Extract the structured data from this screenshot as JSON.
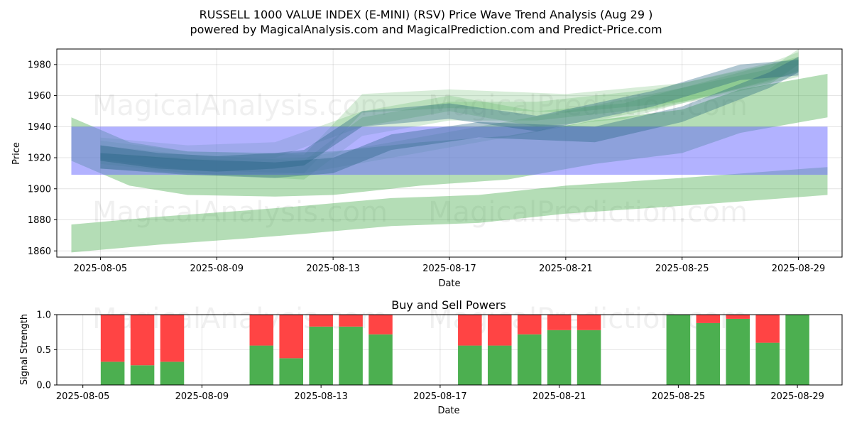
{
  "title_line1": "RUSSELL 1000 VALUE INDEX (E-MINI) (RSV) Price Wave Trend Analysis (Aug 29 )",
  "title_line2": "powered by MagicalAnalysis.com and MagicalPrediction.com and Predict-Price.com",
  "watermarks": [
    "MagicalAnalysis.com",
    "MagicalPrediction.com"
  ],
  "chart_data": [
    {
      "type": "area",
      "xlabel": "Date",
      "ylabel": "Price",
      "ylim": [
        1856,
        1990
      ],
      "xlim": [
        "2025-08-03T12:00",
        "2025-08-30T12:00"
      ],
      "yticks": [
        1860,
        1880,
        1900,
        1920,
        1940,
        1960,
        1980
      ],
      "xticks": [
        "2025-08-05",
        "2025-08-09",
        "2025-08-13",
        "2025-08-17",
        "2025-08-21",
        "2025-08-25",
        "2025-08-29"
      ],
      "grid": true,
      "colors": {
        "green_band": "#4caf50",
        "blue_band": "#6666ff",
        "teal_band": "#1f5f7f"
      },
      "blue_band": {
        "x": [
          "2025-08-04",
          "2025-08-30"
        ],
        "low": 1909,
        "high": 1940
      },
      "green_bands": [
        {
          "x": [
            "2025-08-04",
            "2025-08-07",
            "2025-08-10",
            "2025-08-12",
            "2025-08-15",
            "2025-08-18",
            "2025-08-21",
            "2025-08-25",
            "2025-08-30"
          ],
          "center": [
            1868,
            1873,
            1877,
            1880,
            1885,
            1887,
            1893,
            1898,
            1905
          ],
          "half_width": 9
        },
        {
          "x": [
            "2025-08-04",
            "2025-08-06",
            "2025-08-08",
            "2025-08-11",
            "2025-08-13",
            "2025-08-16",
            "2025-08-19",
            "2025-08-22",
            "2025-08-25",
            "2025-08-27",
            "2025-08-30"
          ],
          "center": [
            1932,
            1916,
            1910,
            1909,
            1910,
            1916,
            1920,
            1930,
            1937,
            1950,
            1960
          ],
          "half_width": 14
        },
        {
          "x": [
            "2025-08-05",
            "2025-08-08",
            "2025-08-12",
            "2025-08-14",
            "2025-08-17",
            "2025-08-21",
            "2025-08-25",
            "2025-08-28",
            "2025-08-29"
          ],
          "center": [
            1925,
            1918,
            1916,
            1955,
            1958,
            1955,
            1962,
            1975,
            1982
          ],
          "half_width": 6
        },
        {
          "x": [
            "2025-08-05",
            "2025-08-08",
            "2025-08-12",
            "2025-08-14",
            "2025-08-17",
            "2025-08-20",
            "2025-08-24",
            "2025-08-27",
            "2025-08-29"
          ],
          "center": [
            1922,
            1916,
            1912,
            1940,
            1950,
            1950,
            1958,
            1970,
            1978
          ],
          "half_width": 6
        },
        {
          "x": [
            "2025-08-05",
            "2025-08-09",
            "2025-08-12",
            "2025-08-15",
            "2025-08-18",
            "2025-08-21",
            "2025-08-25",
            "2025-08-28",
            "2025-08-29"
          ],
          "center": [
            1918,
            1914,
            1915,
            1925,
            1935,
            1945,
            1960,
            1972,
            1985
          ],
          "half_width": 5
        },
        {
          "x": [
            "2025-08-05",
            "2025-08-08",
            "2025-08-11",
            "2025-08-14",
            "2025-08-17",
            "2025-08-20",
            "2025-08-23",
            "2025-08-26",
            "2025-08-29"
          ],
          "center": [
            1928,
            1923,
            1925,
            1945,
            1955,
            1945,
            1950,
            1965,
            1980
          ],
          "half_width": 5
        }
      ],
      "teal_bands": [
        {
          "x": [
            "2025-08-05",
            "2025-08-07",
            "2025-08-09",
            "2025-08-11",
            "2025-08-12",
            "2025-08-14",
            "2025-08-17",
            "2025-08-20",
            "2025-08-24",
            "2025-08-27",
            "2025-08-29"
          ],
          "center": [
            1923,
            1918,
            1916,
            1918,
            1920,
            1945,
            1950,
            1942,
            1958,
            1975,
            1978
          ],
          "half_width": 5
        },
        {
          "x": [
            "2025-08-05",
            "2025-08-08",
            "2025-08-11",
            "2025-08-13",
            "2025-08-15",
            "2025-08-18",
            "2025-08-22",
            "2025-08-25",
            "2025-08-28",
            "2025-08-29"
          ],
          "center": [
            1918,
            1914,
            1912,
            1915,
            1930,
            1938,
            1935,
            1948,
            1970,
            1980
          ],
          "half_width": 5
        }
      ]
    },
    {
      "type": "bar",
      "title": "Buy and Sell Powers",
      "xlabel": "Date",
      "ylabel": "Signal Strength",
      "ylim": [
        0,
        1.0
      ],
      "yticks": [
        0.0,
        0.5,
        1.0
      ],
      "xlim": [
        "2025-08-04T03:00",
        "2025-08-30T12:00"
      ],
      "xticks": [
        "2025-08-05",
        "2025-08-09",
        "2025-08-13",
        "2025-08-17",
        "2025-08-21",
        "2025-08-25",
        "2025-08-29"
      ],
      "colors": {
        "buy": "#4caf50",
        "sell": "#ff4444"
      },
      "categories": [
        "2025-08-06",
        "2025-08-07",
        "2025-08-08",
        "2025-08-11",
        "2025-08-12",
        "2025-08-13",
        "2025-08-14",
        "2025-08-15",
        "2025-08-18",
        "2025-08-19",
        "2025-08-20",
        "2025-08-21",
        "2025-08-22",
        "2025-08-25",
        "2025-08-26",
        "2025-08-27",
        "2025-08-28",
        "2025-08-29"
      ],
      "series": [
        {
          "values": [
            0.33,
            0.28,
            0.33,
            0.56,
            0.38,
            0.83,
            0.83,
            0.72,
            0.56,
            0.56,
            0.72,
            0.78,
            0.78,
            1.0,
            0.88,
            0.94,
            0.6,
            1.0
          ]
        },
        {
          "values": [
            0.67,
            0.72,
            0.67,
            0.44,
            0.62,
            0.17,
            0.17,
            0.28,
            0.44,
            0.44,
            0.28,
            0.22,
            0.22,
            0.0,
            0.12,
            0.06,
            0.4,
            0.0
          ]
        }
      ]
    }
  ]
}
